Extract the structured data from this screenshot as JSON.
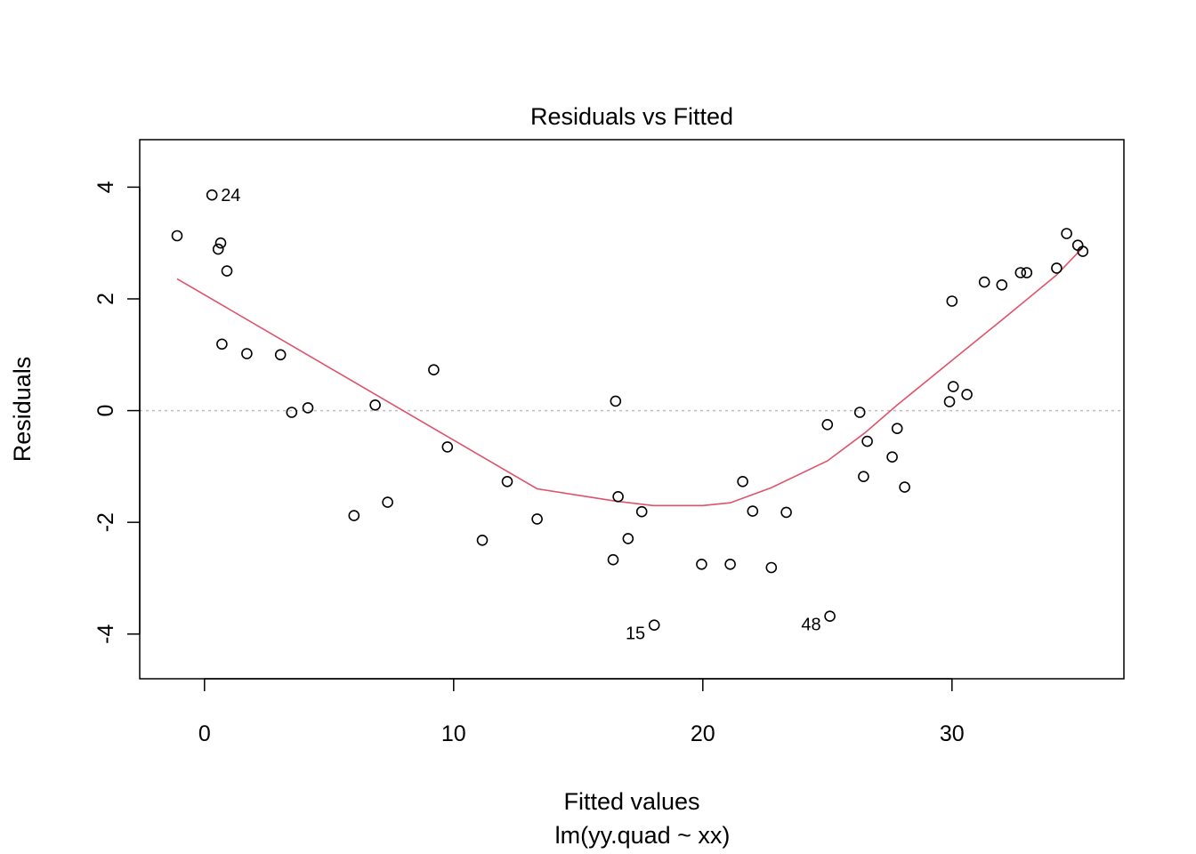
{
  "chart_data": {
    "type": "scatter",
    "title": "Residuals vs Fitted",
    "xlabel": "Fitted values",
    "subtitle": "lm(yy.quad ~ xx)",
    "ylabel": "Residuals",
    "xlim": [
      -2.6,
      36.9
    ],
    "ylim": [
      -4.8,
      4.85
    ],
    "xticks": [
      0,
      10,
      20,
      30
    ],
    "yticks": [
      -4,
      -2,
      0,
      2,
      4
    ],
    "x_tick_labels": [
      "0",
      "10",
      "20",
      "30"
    ],
    "y_tick_labels": [
      "-4",
      "-2",
      "0",
      "2",
      "4"
    ],
    "reference_line": {
      "y": 0,
      "style": "dotted",
      "color": "#bebebe"
    },
    "grid": false,
    "colors": {
      "smooth": "#df536b",
      "points": "#000000",
      "reference": "#bebebe"
    },
    "points": [
      {
        "x": -1.1,
        "y": 3.13
      },
      {
        "x": 0.3,
        "y": 3.86,
        "label": "24"
      },
      {
        "x": 0.55,
        "y": 2.89
      },
      {
        "x": 0.65,
        "y": 3.0
      },
      {
        "x": 0.9,
        "y": 2.5
      },
      {
        "x": 0.7,
        "y": 1.19
      },
      {
        "x": 1.7,
        "y": 1.02
      },
      {
        "x": 3.05,
        "y": 1.0
      },
      {
        "x": 3.5,
        "y": -0.03
      },
      {
        "x": 4.15,
        "y": 0.05
      },
      {
        "x": 6.0,
        "y": -1.88
      },
      {
        "x": 6.85,
        "y": 0.1
      },
      {
        "x": 7.35,
        "y": -1.64
      },
      {
        "x": 9.2,
        "y": 0.73
      },
      {
        "x": 9.75,
        "y": -0.65
      },
      {
        "x": 11.15,
        "y": -2.32
      },
      {
        "x": 12.15,
        "y": -1.27
      },
      {
        "x": 13.35,
        "y": -1.94
      },
      {
        "x": 16.4,
        "y": -2.67
      },
      {
        "x": 16.5,
        "y": 0.17
      },
      {
        "x": 16.6,
        "y": -1.54
      },
      {
        "x": 17.0,
        "y": -2.29
      },
      {
        "x": 17.55,
        "y": -1.81
      },
      {
        "x": 18.05,
        "y": -3.84,
        "label": "15"
      },
      {
        "x": 19.95,
        "y": -2.75
      },
      {
        "x": 21.1,
        "y": -2.75
      },
      {
        "x": 21.6,
        "y": -1.27
      },
      {
        "x": 22.0,
        "y": -1.8
      },
      {
        "x": 22.75,
        "y": -2.81
      },
      {
        "x": 23.35,
        "y": -1.82
      },
      {
        "x": 25.0,
        "y": -0.25
      },
      {
        "x": 25.1,
        "y": -3.68,
        "label": "48"
      },
      {
        "x": 26.3,
        "y": -0.03
      },
      {
        "x": 26.45,
        "y": -1.18
      },
      {
        "x": 26.6,
        "y": -0.55
      },
      {
        "x": 27.6,
        "y": -0.83
      },
      {
        "x": 27.8,
        "y": -0.32
      },
      {
        "x": 28.1,
        "y": -1.37
      },
      {
        "x": 29.9,
        "y": 0.16
      },
      {
        "x": 30.0,
        "y": 1.96
      },
      {
        "x": 30.05,
        "y": 0.43
      },
      {
        "x": 30.6,
        "y": 0.29
      },
      {
        "x": 31.3,
        "y": 2.3
      },
      {
        "x": 32.0,
        "y": 2.25
      },
      {
        "x": 32.75,
        "y": 2.47
      },
      {
        "x": 33.0,
        "y": 2.47
      },
      {
        "x": 34.2,
        "y": 2.55
      },
      {
        "x": 34.6,
        "y": 3.17
      },
      {
        "x": 35.05,
        "y": 2.96
      },
      {
        "x": 35.25,
        "y": 2.85
      }
    ],
    "smooth_line": [
      {
        "x": -1.1,
        "y": 2.36
      },
      {
        "x": 13.35,
        "y": -1.4
      },
      {
        "x": 16.5,
        "y": -1.62
      },
      {
        "x": 18.0,
        "y": -1.7
      },
      {
        "x": 20.0,
        "y": -1.7
      },
      {
        "x": 21.1,
        "y": -1.65
      },
      {
        "x": 22.75,
        "y": -1.38
      },
      {
        "x": 25.0,
        "y": -0.9
      },
      {
        "x": 26.5,
        "y": -0.4
      },
      {
        "x": 27.8,
        "y": 0.1
      },
      {
        "x": 30.0,
        "y": 0.9
      },
      {
        "x": 32.0,
        "y": 1.62
      },
      {
        "x": 34.2,
        "y": 2.43
      },
      {
        "x": 35.25,
        "y": 2.92
      }
    ]
  }
}
